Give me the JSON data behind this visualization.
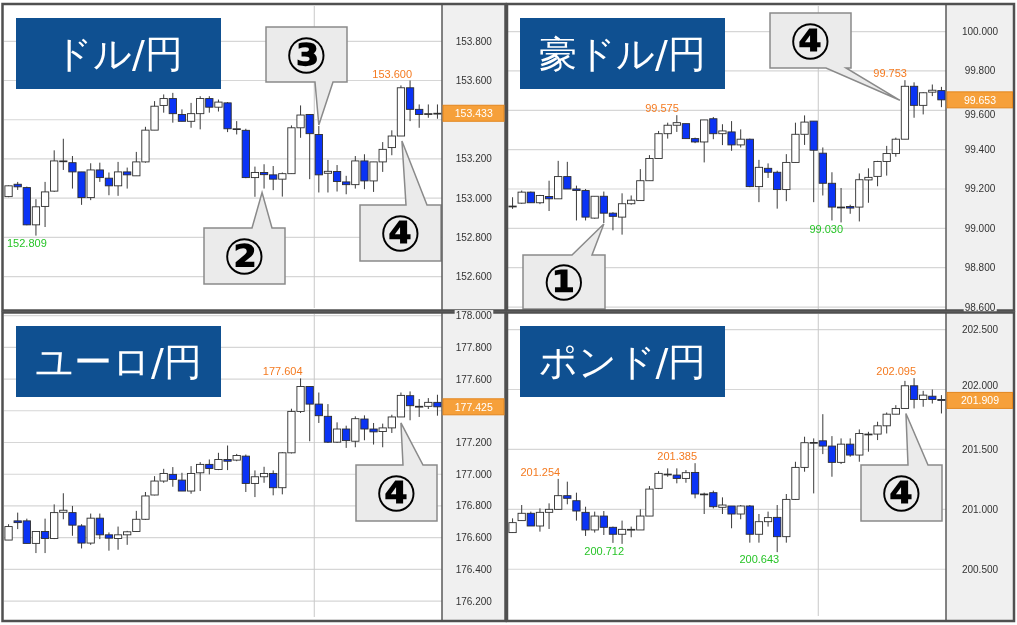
{
  "chart_data": [
    {
      "type": "candlestick",
      "title": "ドル/円",
      "categories": [
        null,
        null,
        null,
        null,
        null,
        null,
        null,
        null,
        null,
        null,
        null,
        null,
        null,
        null,
        null,
        null,
        null,
        null,
        null,
        null,
        null,
        null,
        null,
        null,
        null,
        null,
        null,
        null,
        null,
        null,
        null,
        null,
        null,
        null,
        null,
        null,
        null,
        null,
        null,
        null,
        null,
        null,
        null,
        null,
        null,
        null,
        null,
        null
      ],
      "ohlc": [
        [
          153.008,
          153.065,
          153.005,
          153.063
        ],
        [
          153.071,
          153.083,
          153.042,
          153.058
        ],
        [
          153.054,
          153.059,
          152.862,
          152.864
        ],
        [
          152.864,
          152.995,
          152.809,
          152.956
        ],
        [
          152.958,
          153.083,
          152.853,
          153.032
        ],
        [
          153.036,
          153.244,
          153.032,
          153.19
        ],
        [
          153.19,
          153.303,
          153.144,
          153.19
        ],
        [
          153.181,
          153.215,
          153.049,
          153.134
        ],
        [
          153.134,
          153.134,
          152.966,
          153.003
        ],
        [
          153.003,
          153.178,
          152.99,
          153.144
        ],
        [
          153.144,
          153.181,
          153.083,
          153.105
        ],
        [
          153.102,
          153.131,
          153.015,
          153.063
        ],
        [
          153.063,
          153.185,
          153.012,
          153.134
        ],
        [
          153.134,
          153.156,
          153.049,
          153.119
        ],
        [
          153.114,
          153.236,
          153.114,
          153.185
        ],
        [
          153.185,
          153.364,
          153.181,
          153.347
        ],
        [
          153.347,
          153.495,
          153.347,
          153.469
        ],
        [
          153.473,
          153.529,
          153.436,
          153.508
        ],
        [
          153.508,
          153.537,
          153.385,
          153.431
        ],
        [
          153.427,
          153.453,
          153.392,
          153.392
        ],
        [
          153.392,
          153.486,
          153.359,
          153.431
        ],
        [
          153.431,
          153.52,
          153.351,
          153.508
        ],
        [
          153.508,
          153.52,
          153.436,
          153.464
        ],
        [
          153.464,
          153.503,
          153.442,
          153.49
        ],
        [
          153.486,
          153.49,
          153.337,
          153.354
        ],
        [
          153.354,
          153.393,
          153.325,
          153.354
        ],
        [
          153.346,
          153.354,
          153.102,
          153.105
        ],
        [
          153.105,
          153.161,
          153.007,
          153.131
        ],
        [
          153.131,
          153.173,
          153.049,
          153.12
        ],
        [
          153.119,
          153.164,
          153.041,
          153.097
        ],
        [
          153.097,
          153.131,
          153.008,
          153.125
        ],
        [
          153.125,
          153.371,
          153.125,
          153.359
        ],
        [
          153.359,
          153.473,
          153.308,
          153.424
        ],
        [
          153.427,
          153.427,
          153.097,
          153.329
        ],
        [
          153.325,
          153.368,
          153.029,
          153.119
        ],
        [
          153.127,
          153.195,
          153.029,
          153.137
        ],
        [
          153.136,
          153.169,
          153.034,
          153.085
        ],
        [
          153.083,
          153.114,
          153.02,
          153.069
        ],
        [
          153.069,
          153.215,
          153.049,
          153.19
        ],
        [
          153.19,
          153.224,
          153.046,
          153.088
        ],
        [
          153.088,
          153.185,
          153.032,
          153.185
        ],
        [
          153.185,
          153.286,
          153.134,
          153.249
        ],
        [
          153.258,
          153.346,
          153.219,
          153.317
        ],
        [
          153.317,
          153.575,
          153.317,
          153.563
        ],
        [
          153.563,
          153.6,
          153.393,
          153.453
        ],
        [
          153.453,
          153.478,
          153.359,
          153.427
        ],
        [
          153.431,
          153.478,
          153.41,
          153.431
        ],
        [
          153.433,
          153.478,
          153.405,
          153.433
        ]
      ],
      "colors": [
        "#ffffff",
        "#0a33f5",
        "#0a33f5",
        "#ffffff",
        "#ffffff",
        "#ffffff",
        "#ffffff",
        "#0a33f5",
        "#0a33f5",
        "#ffffff",
        "#0a33f5",
        "#0a33f5",
        "#ffffff",
        "#0a33f5",
        "#ffffff",
        "#ffffff",
        "#ffffff",
        "#ffffff",
        "#0a33f5",
        "#0a33f5",
        "#ffffff",
        "#ffffff",
        "#0a33f5",
        "#ffffff",
        "#0a33f5",
        "#ffffff",
        "#0a33f5",
        "#ffffff",
        "#0a33f5",
        "#0a33f5",
        "#ffffff",
        "#ffffff",
        "#ffffff",
        "#0a33f5",
        "#0a33f5",
        "#ffffff",
        "#0a33f5",
        "#0a33f5",
        "#ffffff",
        "#0a33f5",
        "#ffffff",
        "#ffffff",
        "#ffffff",
        "#ffffff",
        "#0a33f5",
        "#0a33f5",
        "#ffffff",
        "#ffffff"
      ],
      "ylim": [
        152.44,
        153.98
      ],
      "yticks": [
        {
          "value": 152.6,
          "label": "152.600"
        },
        {
          "value": 152.8,
          "label": "152.800"
        },
        {
          "value": 153.0,
          "label": "153.000"
        },
        {
          "value": 153.2,
          "label": "153.200"
        },
        {
          "value": 153.4,
          "label": null
        },
        {
          "value": 153.6,
          "label": "153.600"
        },
        {
          "value": 153.8,
          "label": "153.800"
        }
      ],
      "grid": "y",
      "tick_labels": "y",
      "annotations": [
        "153.600",
        "152.809",
        "153.433",
        "③",
        "②",
        "④"
      ]
    },
    {
      "type": "candlestick",
      "title": "豪ドル/円",
      "categories": [
        null,
        null,
        null,
        null,
        null,
        null,
        null,
        null,
        null,
        null,
        null,
        null,
        null,
        null,
        null,
        null,
        null,
        null,
        null,
        null,
        null,
        null,
        null,
        null,
        null,
        null,
        null,
        null,
        null,
        null,
        null,
        null,
        null,
        null,
        null,
        null,
        null,
        null,
        null,
        null,
        null,
        null,
        null,
        null,
        null,
        null,
        null,
        null
      ],
      "ohlc": [
        [
          99.113,
          99.158,
          99.099,
          99.113
        ],
        [
          99.128,
          99.192,
          99.125,
          99.184
        ],
        [
          99.184,
          99.187,
          99.13,
          99.13
        ],
        [
          99.13,
          99.17,
          99.123,
          99.167
        ],
        [
          99.162,
          99.242,
          99.088,
          99.15
        ],
        [
          99.15,
          99.343,
          99.15,
          99.263
        ],
        [
          99.263,
          99.338,
          99.2,
          99.2
        ],
        [
          99.2,
          99.217,
          99.04,
          99.192
        ],
        [
          99.192,
          99.2,
          99.04,
          99.057
        ],
        [
          99.052,
          99.163,
          99.049,
          99.163
        ],
        [
          99.163,
          99.187,
          99.027,
          99.077
        ],
        [
          99.077,
          99.082,
          98.99,
          99.061
        ],
        [
          99.057,
          99.178,
          98.968,
          99.125
        ],
        [
          99.125,
          99.167,
          99.12,
          99.143
        ],
        [
          99.141,
          99.301,
          99.141,
          99.242
        ],
        [
          99.242,
          99.372,
          99.242,
          99.355
        ],
        [
          99.355,
          99.495,
          99.355,
          99.481
        ],
        [
          99.481,
          99.537,
          99.456,
          99.524
        ],
        [
          99.524,
          99.575,
          99.49,
          99.537
        ],
        [
          99.532,
          99.532,
          99.456,
          99.456
        ],
        [
          99.456,
          99.461,
          99.433,
          99.439
        ],
        [
          99.439,
          99.551,
          99.335,
          99.551
        ],
        [
          99.557,
          99.566,
          99.453,
          99.481
        ],
        [
          99.481,
          99.529,
          99.423,
          99.495
        ],
        [
          99.49,
          99.545,
          99.394,
          99.424
        ],
        [
          99.424,
          99.503,
          99.411,
          99.453
        ],
        [
          99.453,
          99.456,
          99.209,
          99.212
        ],
        [
          99.212,
          99.348,
          99.133,
          99.31
        ],
        [
          99.305,
          99.33,
          99.256,
          99.285
        ],
        [
          99.285,
          99.293,
          99.1,
          99.197
        ],
        [
          99.197,
          99.377,
          99.138,
          99.335
        ],
        [
          99.335,
          99.537,
          99.335,
          99.478
        ],
        [
          99.478,
          99.574,
          99.424,
          99.54
        ],
        [
          99.545,
          99.545,
          99.133,
          99.397
        ],
        [
          99.382,
          99.411,
          99.167,
          99.229
        ],
        [
          99.229,
          99.285,
          99.04,
          99.108
        ],
        [
          99.108,
          99.205,
          99.03,
          99.108
        ],
        [
          99.111,
          99.12,
          99.074,
          99.103
        ],
        [
          99.108,
          99.279,
          99.035,
          99.247
        ],
        [
          99.246,
          99.305,
          99.13,
          99.259
        ],
        [
          99.264,
          99.343,
          99.214,
          99.34
        ],
        [
          99.34,
          99.419,
          99.268,
          99.38
        ],
        [
          99.38,
          99.461,
          99.364,
          99.453
        ],
        [
          99.453,
          99.753,
          99.453,
          99.722
        ],
        [
          99.722,
          99.742,
          99.562,
          99.625
        ],
        [
          99.625,
          99.692,
          99.579,
          99.689
        ],
        [
          99.692,
          99.731,
          99.672,
          99.702
        ],
        [
          99.7,
          99.719,
          99.616,
          99.653
        ]
      ],
      "colors": [
        "#ffffff",
        "#ffffff",
        "#0a33f5",
        "#ffffff",
        "#0a33f5",
        "#ffffff",
        "#0a33f5",
        "#0a33f5",
        "#0a33f5",
        "#ffffff",
        "#0a33f5",
        "#0a33f5",
        "#ffffff",
        "#ffffff",
        "#ffffff",
        "#ffffff",
        "#ffffff",
        "#ffffff",
        "#ffffff",
        "#0a33f5",
        "#0a33f5",
        "#ffffff",
        "#0a33f5",
        "#ffffff",
        "#0a33f5",
        "#ffffff",
        "#0a33f5",
        "#ffffff",
        "#0a33f5",
        "#0a33f5",
        "#ffffff",
        "#ffffff",
        "#ffffff",
        "#0a33f5",
        "#0a33f5",
        "#0a33f5",
        "#ffffff",
        "#0a33f5",
        "#ffffff",
        "#ffffff",
        "#ffffff",
        "#ffffff",
        "#ffffff",
        "#ffffff",
        "#0a33f5",
        "#ffffff",
        "#ffffff",
        "#0a33f5"
      ],
      "ylim": [
        98.59,
        100.13
      ],
      "yticks": [
        {
          "value": 98.6,
          "label": "98.600"
        },
        {
          "value": 98.8,
          "label": "98.800"
        },
        {
          "value": 99.0,
          "label": "99.000"
        },
        {
          "value": 99.2,
          "label": "99.200"
        },
        {
          "value": 99.4,
          "label": "99.400"
        },
        {
          "value": 99.6,
          "label": "99.600"
        },
        {
          "value": 99.8,
          "label": "99.800"
        },
        {
          "value": 100.0,
          "label": "100.000"
        }
      ],
      "grid": "y",
      "tick_labels": "y",
      "annotations": [
        "99.575",
        "99.753",
        "99.030",
        "99.653",
        "①",
        "④"
      ]
    },
    {
      "type": "candlestick",
      "title": "ユーロ/円",
      "categories": [
        null,
        null,
        null,
        null,
        null,
        null,
        null,
        null,
        null,
        null,
        null,
        null,
        null,
        null,
        null,
        null,
        null,
        null,
        null,
        null,
        null,
        null,
        null,
        null,
        null,
        null,
        null,
        null,
        null,
        null,
        null,
        null,
        null,
        null,
        null,
        null,
        null,
        null,
        null,
        null,
        null,
        null,
        null,
        null,
        null,
        null,
        null,
        null
      ],
      "ohlc": [
        [
          176.585,
          176.685,
          176.585,
          176.67
        ],
        [
          176.706,
          176.758,
          176.654,
          176.695
        ],
        [
          176.706,
          176.72,
          176.564,
          176.564
        ],
        [
          176.564,
          176.639,
          176.503,
          176.639
        ],
        [
          176.639,
          176.72,
          176.503,
          176.595
        ],
        [
          176.595,
          176.81,
          176.591,
          176.758
        ],
        [
          176.76,
          176.88,
          176.716,
          176.773
        ],
        [
          176.758,
          176.8,
          176.612,
          176.679
        ],
        [
          176.674,
          176.685,
          176.532,
          176.566
        ],
        [
          176.566,
          176.752,
          176.555,
          176.723
        ],
        [
          176.723,
          176.752,
          176.591,
          176.618
        ],
        [
          176.618,
          176.633,
          176.518,
          176.597
        ],
        [
          176.595,
          176.67,
          176.524,
          176.618
        ],
        [
          176.618,
          176.643,
          176.555,
          176.637
        ],
        [
          176.639,
          176.769,
          176.639,
          176.716
        ],
        [
          176.716,
          176.888,
          176.712,
          176.863
        ],
        [
          176.869,
          176.988,
          176.867,
          176.957
        ],
        [
          176.957,
          177.034,
          176.946,
          177.005
        ],
        [
          176.999,
          177.045,
          176.921,
          176.967
        ],
        [
          176.963,
          177.009,
          176.894,
          176.894
        ],
        [
          176.894,
          177.051,
          176.877,
          177.005
        ],
        [
          177.009,
          177.076,
          176.894,
          177.062
        ],
        [
          177.062,
          177.093,
          176.999,
          177.036
        ],
        [
          177.03,
          177.135,
          177.026,
          177.093
        ],
        [
          177.093,
          177.181,
          177.026,
          177.082
        ],
        [
          177.089,
          177.128,
          177.082,
          177.118
        ],
        [
          177.114,
          177.124,
          176.888,
          176.942
        ],
        [
          176.942,
          177.024,
          176.856,
          176.984
        ],
        [
          176.984,
          177.047,
          176.946,
          177.005
        ],
        [
          177.005,
          177.024,
          176.867,
          176.915
        ],
        [
          176.915,
          177.139,
          176.873,
          177.135
        ],
        [
          177.135,
          177.413,
          177.131,
          177.396
        ],
        [
          177.396,
          177.604,
          177.386,
          177.553
        ],
        [
          177.553,
          177.553,
          177.208,
          177.442
        ],
        [
          177.442,
          177.515,
          177.323,
          177.369
        ],
        [
          177.365,
          177.442,
          177.197,
          177.202
        ],
        [
          177.202,
          177.327,
          177.197,
          177.285
        ],
        [
          177.285,
          177.306,
          177.166,
          177.212
        ],
        [
          177.208,
          177.365,
          177.17,
          177.35
        ],
        [
          177.348,
          177.371,
          177.214,
          177.285
        ],
        [
          177.285,
          177.323,
          177.187,
          177.267
        ],
        [
          177.269,
          177.319,
          177.17,
          177.292
        ],
        [
          177.292,
          177.375,
          177.26,
          177.361
        ],
        [
          177.361,
          177.515,
          177.361,
          177.497
        ],
        [
          177.495,
          177.522,
          177.34,
          177.432
        ],
        [
          177.428,
          177.474,
          177.361,
          177.428
        ],
        [
          177.428,
          177.48,
          177.411,
          177.453
        ],
        [
          177.453,
          177.501,
          177.369,
          177.425
        ]
      ],
      "colors": [
        "#ffffff",
        "#0a33f5",
        "#0a33f5",
        "#ffffff",
        "#0a33f5",
        "#ffffff",
        "#ffffff",
        "#0a33f5",
        "#0a33f5",
        "#ffffff",
        "#0a33f5",
        "#0a33f5",
        "#ffffff",
        "#ffffff",
        "#ffffff",
        "#ffffff",
        "#ffffff",
        "#ffffff",
        "#0a33f5",
        "#0a33f5",
        "#ffffff",
        "#ffffff",
        "#0a33f5",
        "#ffffff",
        "#0a33f5",
        "#ffffff",
        "#0a33f5",
        "#ffffff",
        "#ffffff",
        "#0a33f5",
        "#ffffff",
        "#ffffff",
        "#ffffff",
        "#0a33f5",
        "#0a33f5",
        "#0a33f5",
        "#ffffff",
        "#0a33f5",
        "#ffffff",
        "#0a33f5",
        "#0a33f5",
        "#ffffff",
        "#ffffff",
        "#ffffff",
        "#0a33f5",
        "#ffffff",
        "#ffffff",
        "#0a33f5"
      ],
      "ylim": [
        176.1,
        178.01
      ],
      "yticks": [
        {
          "value": 176.2,
          "label": "176.200"
        },
        {
          "value": 176.4,
          "label": "176.400"
        },
        {
          "value": 176.6,
          "label": "176.600"
        },
        {
          "value": 176.8,
          "label": "176.800"
        },
        {
          "value": 177.0,
          "label": "177.000"
        },
        {
          "value": 177.2,
          "label": "177.200"
        },
        {
          "value": 177.4,
          "label": null
        },
        {
          "value": 177.6,
          "label": "177.600"
        },
        {
          "value": 177.8,
          "label": "177.800"
        },
        {
          "value": 178.0,
          "label": "178.000"
        }
      ],
      "grid": "y",
      "tick_labels": "y",
      "annotations": [
        "177.604",
        "177.425",
        "④"
      ]
    },
    {
      "type": "candlestick",
      "title": "ポンド/円",
      "categories": [
        null,
        null,
        null,
        null,
        null,
        null,
        null,
        null,
        null,
        null,
        null,
        null,
        null,
        null,
        null,
        null,
        null,
        null,
        null,
        null,
        null,
        null,
        null,
        null,
        null,
        null,
        null,
        null,
        null,
        null,
        null,
        null,
        null,
        null,
        null,
        null,
        null,
        null,
        null,
        null,
        null,
        null,
        null,
        null,
        null,
        null,
        null,
        null
      ],
      "ohlc": [
        [
          200.806,
          200.925,
          200.806,
          200.889
        ],
        [
          200.906,
          201.036,
          200.906,
          200.967
        ],
        [
          200.967,
          200.981,
          200.861,
          200.861
        ],
        [
          200.861,
          201.008,
          200.814,
          200.975
        ],
        [
          200.975,
          201.05,
          200.836,
          201.0
        ],
        [
          201.0,
          201.254,
          201.0,
          201.114
        ],
        [
          201.114,
          201.231,
          201.042,
          201.092
        ],
        [
          201.072,
          201.139,
          200.906,
          200.986
        ],
        [
          200.975,
          201.022,
          200.778,
          200.828
        ],
        [
          200.828,
          200.981,
          200.806,
          200.944
        ],
        [
          200.944,
          200.986,
          200.786,
          200.85
        ],
        [
          200.85,
          200.856,
          200.72,
          200.792
        ],
        [
          200.792,
          200.906,
          200.712,
          200.833
        ],
        [
          200.833,
          200.856,
          200.767,
          200.833
        ],
        [
          200.828,
          201.0,
          200.828,
          200.944
        ],
        [
          200.944,
          201.194,
          200.944,
          201.169
        ],
        [
          201.175,
          201.319,
          201.169,
          201.3
        ],
        [
          201.294,
          201.342,
          201.272,
          201.294
        ],
        [
          201.286,
          201.342,
          201.217,
          201.258
        ],
        [
          201.258,
          201.328,
          201.222,
          201.306
        ],
        [
          201.308,
          201.385,
          201.092,
          201.128
        ],
        [
          201.128,
          201.139,
          200.961,
          201.128
        ],
        [
          201.139,
          201.156,
          201.008,
          201.022
        ],
        [
          201.017,
          201.1,
          200.961,
          201.036
        ],
        [
          201.028,
          201.028,
          200.842,
          200.961
        ],
        [
          200.961,
          201.036,
          200.917,
          201.028
        ],
        [
          201.028,
          201.036,
          200.722,
          200.792
        ],
        [
          200.792,
          200.961,
          200.722,
          200.897
        ],
        [
          200.897,
          200.981,
          200.856,
          200.931
        ],
        [
          200.933,
          201.036,
          200.643,
          200.772
        ],
        [
          200.772,
          201.128,
          200.722,
          201.083
        ],
        [
          201.083,
          201.397,
          201.078,
          201.35
        ],
        [
          201.35,
          201.606,
          201.314,
          201.556
        ],
        [
          201.558,
          201.592,
          201.133,
          201.558
        ],
        [
          201.572,
          201.794,
          201.461,
          201.528
        ],
        [
          201.528,
          201.611,
          201.272,
          201.392
        ],
        [
          201.392,
          201.592,
          201.378,
          201.544
        ],
        [
          201.544,
          201.592,
          201.439,
          201.453
        ],
        [
          201.453,
          201.667,
          201.397,
          201.633
        ],
        [
          201.628,
          201.647,
          201.481,
          201.628
        ],
        [
          201.628,
          201.731,
          201.578,
          201.697
        ],
        [
          201.697,
          201.808,
          201.633,
          201.794
        ],
        [
          201.794,
          201.869,
          201.794,
          201.842
        ],
        [
          201.842,
          202.072,
          201.842,
          202.031
        ],
        [
          202.031,
          202.095,
          201.842,
          201.917
        ],
        [
          201.917,
          201.989,
          201.856,
          201.953
        ],
        [
          201.944,
          202.0,
          201.883,
          201.917
        ],
        [
          201.917,
          201.953,
          201.8,
          201.909
        ]
      ],
      "colors": [
        "#ffffff",
        "#ffffff",
        "#0a33f5",
        "#ffffff",
        "#ffffff",
        "#ffffff",
        "#0a33f5",
        "#0a33f5",
        "#0a33f5",
        "#ffffff",
        "#0a33f5",
        "#0a33f5",
        "#ffffff",
        "#ffffff",
        "#ffffff",
        "#ffffff",
        "#ffffff",
        "#ffffff",
        "#0a33f5",
        "#ffffff",
        "#0a33f5",
        "#ffffff",
        "#0a33f5",
        "#ffffff",
        "#0a33f5",
        "#ffffff",
        "#0a33f5",
        "#ffffff",
        "#ffffff",
        "#0a33f5",
        "#ffffff",
        "#ffffff",
        "#ffffff",
        "#ffffff",
        "#0a33f5",
        "#0a33f5",
        "#ffffff",
        "#0a33f5",
        "#ffffff",
        "#ffffff",
        "#ffffff",
        "#ffffff",
        "#ffffff",
        "#ffffff",
        "#0a33f5",
        "#ffffff",
        "#0a33f5",
        "#0a33f5"
      ],
      "ylim": [
        200.11,
        202.63
      ],
      "yticks": [
        {
          "value": 200.5,
          "label": "200.500"
        },
        {
          "value": 201.0,
          "label": "201.000"
        },
        {
          "value": 201.5,
          "label": "201.500"
        },
        {
          "value": 202.0,
          "label": "202.000"
        },
        {
          "value": 202.5,
          "label": "202.500"
        }
      ],
      "grid": "y",
      "tick_labels": "y",
      "annotations": [
        "201.254",
        "201.385",
        "202.095",
        "200.712",
        "200.643",
        "201.909",
        "④"
      ]
    }
  ]
}
